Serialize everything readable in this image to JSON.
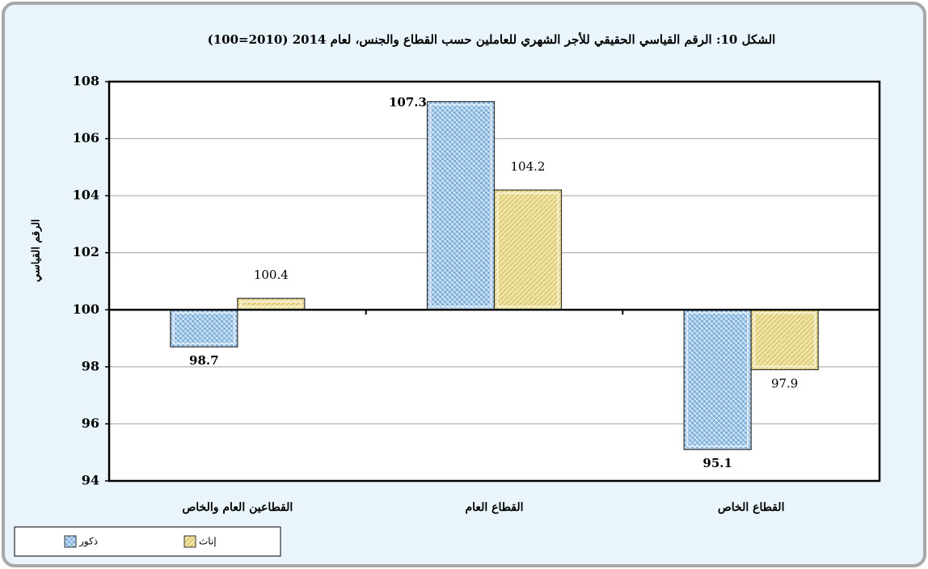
{
  "chart_data": {
    "type": "bar",
    "title": "الشكل 10: الرقم القياسي الحقيقي للأجر الشهري للعاملين حسب القطاع والجنس، لعام 2014 (2010=100)",
    "y_label": "الرقم القياسي",
    "categories": [
      "القطاعين العام والخاص",
      "القطاع العام",
      "القطاع الخاص"
    ],
    "series": [
      {
        "name": "ذكور",
        "color": "#9cc5ea",
        "values": [
          98.7,
          107.3,
          95.1
        ]
      },
      {
        "name": "إناث",
        "color": "#efe3a0",
        "values": [
          100.4,
          104.2,
          97.9
        ]
      }
    ],
    "ylim": [
      94,
      108
    ],
    "yticks": [
      94,
      96,
      98,
      100,
      102,
      104,
      106,
      108
    ],
    "x_axis_crosses": 100,
    "grid": true
  }
}
